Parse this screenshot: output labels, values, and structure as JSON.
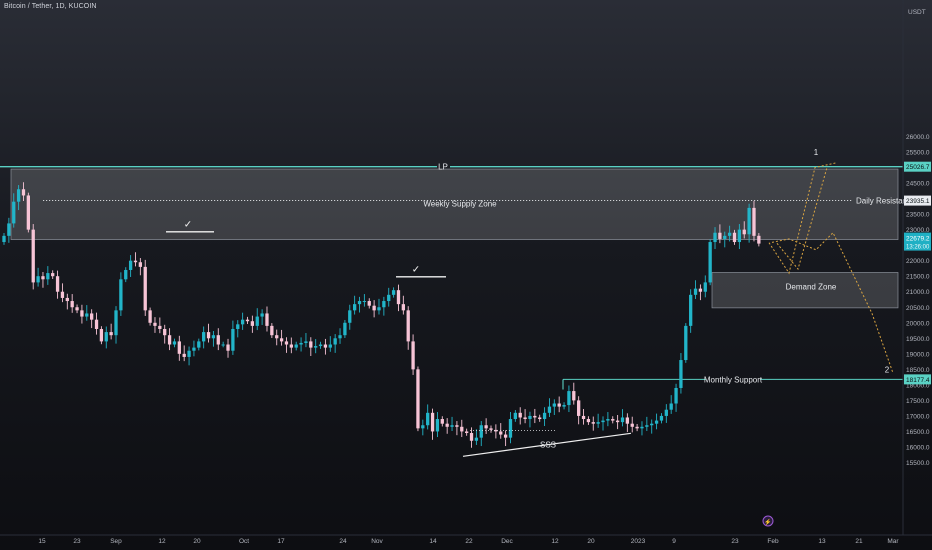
{
  "header": {
    "symbol_title": "Bitcoin / Tether, 1D, KUCOIN",
    "currency": "USDT"
  },
  "colors": {
    "up_candle": "#22b5c9",
    "down_candle": "#f7c4d6",
    "level_line": "#5ad1c4",
    "zone_fill": "rgba(255,255,255,0.16)",
    "zone_border": "#8a8f99",
    "projection": "#d9a441",
    "axis_text": "#b2b5be"
  },
  "chart_data": {
    "type": "candlestick",
    "title": "Bitcoin / Tether, 1D, KUCOIN",
    "y_axis": {
      "side": "right",
      "unit": "USDT",
      "range": [
        15250,
        26100
      ],
      "ticks": [
        15500,
        16000,
        16500,
        17000,
        17500,
        18000,
        18500,
        19000,
        19500,
        20000,
        20500,
        21000,
        21500,
        22000,
        22500,
        23000,
        23500,
        24000,
        24500,
        25000,
        25500,
        26000
      ]
    },
    "x_axis": {
      "ticks": [
        "15",
        "23",
        "Sep",
        "12",
        "20",
        "Oct",
        "17",
        "24",
        "Nov",
        "14",
        "22",
        "Dec",
        "12",
        "20",
        "2023",
        "9",
        "23",
        "Feb",
        "13",
        "21",
        "Mar"
      ]
    },
    "closes": [
      22800,
      23200,
      23900,
      24300,
      24100,
      23000,
      21300,
      21500,
      21400,
      21600,
      21500,
      21000,
      20800,
      20700,
      20500,
      20400,
      20200,
      20300,
      20100,
      19800,
      19400,
      19700,
      19600,
      20400,
      21400,
      21700,
      22000,
      21950,
      21800,
      20400,
      20000,
      19900,
      19800,
      19600,
      19300,
      19400,
      19000,
      18900,
      19100,
      19200,
      19400,
      19700,
      19500,
      19600,
      19300,
      19300,
      19100,
      19800,
      19950,
      20100,
      20050,
      19900,
      20200,
      20300,
      19900,
      19600,
      19500,
      19400,
      19300,
      19200,
      19300,
      19350,
      19400,
      19200,
      19250,
      19300,
      19200,
      19300,
      19500,
      19600,
      20000,
      20400,
      20600,
      20700,
      20700,
      20550,
      20400,
      20500,
      20700,
      20900,
      21050,
      20600,
      20400,
      19400,
      18500,
      16600,
      16700,
      17100,
      16500,
      16900,
      16750,
      16650,
      16700,
      16650,
      16500,
      16450,
      16200,
      16300,
      16700,
      16600,
      16550,
      16500,
      16400,
      16300,
      16900,
      17100,
      16950,
      16900,
      17000,
      16950,
      16900,
      17100,
      17300,
      17400,
      17300,
      17350,
      17800,
      17500,
      17000,
      16900,
      16800,
      16750,
      16800,
      16850,
      16900,
      16850,
      16800,
      16950,
      16750,
      16650,
      16600,
      16650,
      16700,
      16750,
      16850,
      17000,
      17200,
      17400,
      17900,
      18800,
      19900,
      20900,
      21100,
      21000,
      21300,
      22600,
      22900,
      22700,
      22800,
      22900,
      22600,
      23000,
      22850,
      23700,
      22800,
      22550
    ],
    "levels": [
      {
        "label": "LP",
        "value": 25026.7,
        "price_tag": "25026.7"
      },
      {
        "label": "Daily Resistance",
        "value": 23935.1,
        "price_tag": "23935.1",
        "style": "dotted"
      },
      {
        "label": "Monthly Support",
        "value": 18177.4,
        "price_tag": "18177.4"
      }
    ],
    "current_price_tag": "22679.2",
    "countdown_tag": "13:26:00",
    "zones": [
      {
        "label": "Weekly Supply Zone",
        "top": 24950,
        "bottom": 22680
      },
      {
        "label": "Demand Zone",
        "top": 21620,
        "bottom": 20480
      }
    ],
    "annotations": [
      "✓",
      "✓",
      "SSS",
      "1",
      "2"
    ],
    "projection_paths": [
      {
        "name": "1",
        "points": [
          22580,
          21600,
          25000,
          25150
        ]
      },
      {
        "name": "2",
        "points": [
          22590,
          22700,
          22350,
          22900,
          20300,
          18380
        ]
      }
    ]
  }
}
